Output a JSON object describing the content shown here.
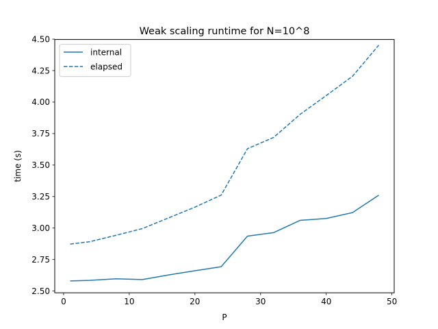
{
  "chart_data": {
    "type": "line",
    "title": "Weak scaling runtime for N=10^8",
    "xlabel": "P",
    "ylabel": "time (s)",
    "xlim": [
      -1.35,
      50.35
    ],
    "ylim": [
      2.486,
      4.497
    ],
    "xticks": [
      "0",
      "10",
      "20",
      "30",
      "40",
      "50"
    ],
    "xtick_values": [
      0,
      10,
      20,
      30,
      40,
      50
    ],
    "yticks": [
      "2.50",
      "2.75",
      "3.00",
      "3.25",
      "3.50",
      "3.75",
      "4.00",
      "4.25",
      "4.50"
    ],
    "ytick_values": [
      2.5,
      2.75,
      3.0,
      3.25,
      3.5,
      3.75,
      4.0,
      4.25,
      4.5
    ],
    "grid": false,
    "legend_position": "upper-left",
    "x": [
      1,
      4,
      8,
      12,
      16,
      20,
      24,
      28,
      32,
      36,
      40,
      44,
      48
    ],
    "series": [
      {
        "name": "internal",
        "style": "solid",
        "color": "#1f77b4",
        "values": [
          2.58,
          2.585,
          2.597,
          2.591,
          2.628,
          2.661,
          2.693,
          2.936,
          2.964,
          3.061,
          3.076,
          3.123,
          3.261
        ]
      },
      {
        "name": "elapsed",
        "style": "dashed",
        "color": "#1f77b4",
        "values": [
          2.873,
          2.892,
          2.943,
          2.996,
          3.081,
          3.166,
          3.262,
          3.63,
          3.72,
          3.902,
          4.052,
          4.205,
          4.452
        ]
      }
    ]
  }
}
